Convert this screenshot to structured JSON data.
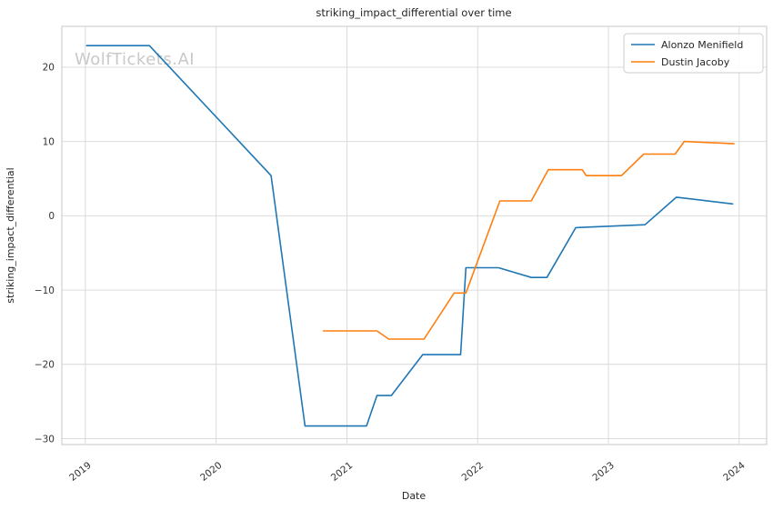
{
  "chart_data": {
    "type": "line",
    "title": "striking_impact_differential over time",
    "xlabel": "Date",
    "ylabel": "striking_impact_differential",
    "watermark": "WolfTickets.AI",
    "grid": true,
    "legend_position": "upper right",
    "x_tick_years": [
      2019,
      2020,
      2021,
      2022,
      2023,
      2024
    ],
    "x_tick_labels": [
      "2019",
      "2020",
      "2021",
      "2022",
      "2023",
      "2024"
    ],
    "y_ticks": [
      20,
      10,
      0,
      -10,
      -20,
      -30
    ],
    "xlim": [
      2018.82,
      2024.21
    ],
    "ylim": [
      -30.8,
      25.5
    ],
    "series": [
      {
        "name": "Alonzo Menifield",
        "color": "#1f77b4",
        "x": [
          2019.01,
          2019.49,
          2020.42,
          2020.68,
          2021.15,
          2021.23,
          2021.34,
          2021.58,
          2021.87,
          2021.91,
          2022.16,
          2022.41,
          2022.53,
          2022.75,
          2023.28,
          2023.52,
          2023.95
        ],
        "y": [
          22.9,
          22.9,
          5.4,
          -28.3,
          -28.3,
          -24.2,
          -24.2,
          -18.7,
          -18.7,
          -7.0,
          -7.0,
          -8.3,
          -8.3,
          -1.6,
          -1.2,
          2.5,
          1.6
        ]
      },
      {
        "name": "Dustin Jacoby",
        "color": "#ff7f0e",
        "x": [
          2020.82,
          2021.23,
          2021.32,
          2021.59,
          2021.82,
          2021.91,
          2022.17,
          2022.41,
          2022.54,
          2022.8,
          2022.83,
          2023.1,
          2023.27,
          2023.51,
          2023.58,
          2023.96
        ],
        "y": [
          -15.5,
          -15.5,
          -16.6,
          -16.6,
          -10.4,
          -10.4,
          2.0,
          2.0,
          6.2,
          6.2,
          5.4,
          5.4,
          8.3,
          8.3,
          10.0,
          9.7
        ]
      }
    ]
  },
  "colors": {
    "grid": "#d7d7d7",
    "spine": "#c7c7c7",
    "background": "#ffffff",
    "legend_border": "#cccccc"
  }
}
